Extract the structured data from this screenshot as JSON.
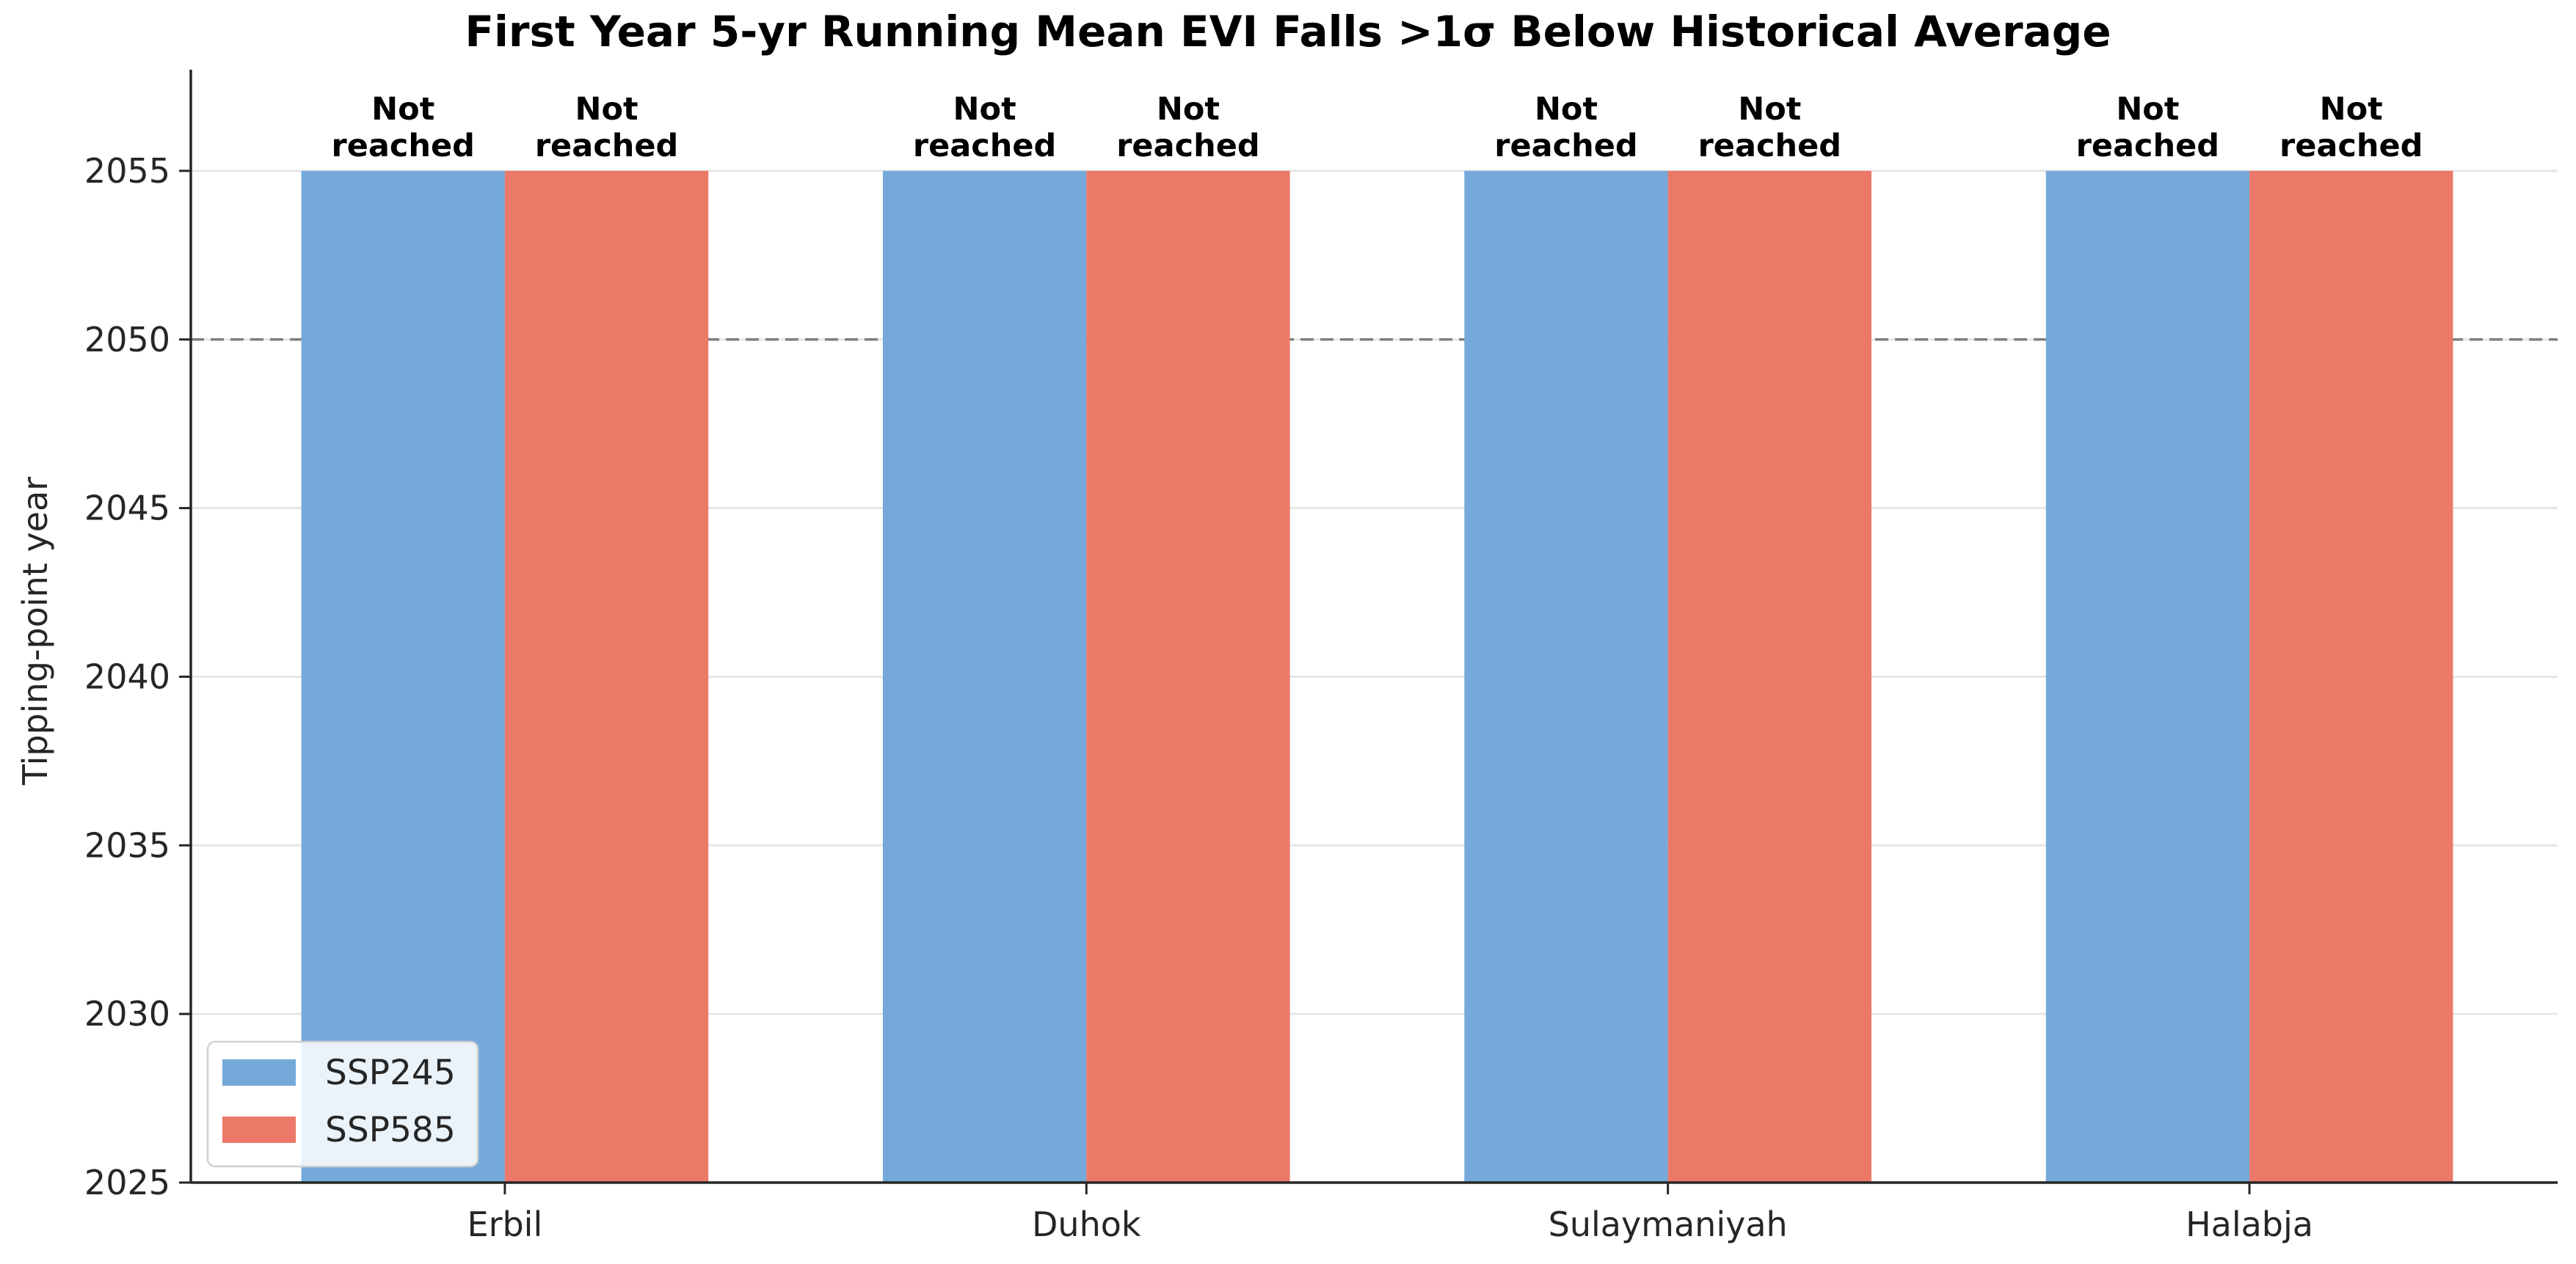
{
  "chart_data": {
    "type": "bar",
    "title": "First Year 5-yr Running Mean EVI Falls >1σ Below Historical Average",
    "xlabel": "",
    "ylabel": "Tipping-point year",
    "categories": [
      "Erbil",
      "Duhok",
      "Sulaymaniyah",
      "Halabja"
    ],
    "series": [
      {
        "name": "SSP245",
        "color": "#74a9da",
        "values": [
          2055,
          2055,
          2055,
          2055
        ],
        "labels": [
          "Not\nreached",
          "Not\nreached",
          "Not\nreached",
          "Not\nreached"
        ]
      },
      {
        "name": "SSP585",
        "color": "#ec7868",
        "values": [
          2055,
          2055,
          2055,
          2055
        ],
        "labels": [
          "Not\nreached",
          "Not\nreached",
          "Not\nreached",
          "Not\nreached"
        ]
      }
    ],
    "ylim": [
      2025,
      2058
    ],
    "yticks": [
      2025,
      2030,
      2035,
      2040,
      2045,
      2050,
      2055
    ],
    "reference_line": {
      "y": 2050,
      "style": "dashed",
      "color": "#808080"
    },
    "grid": "y",
    "legend_position": "lower-left"
  }
}
